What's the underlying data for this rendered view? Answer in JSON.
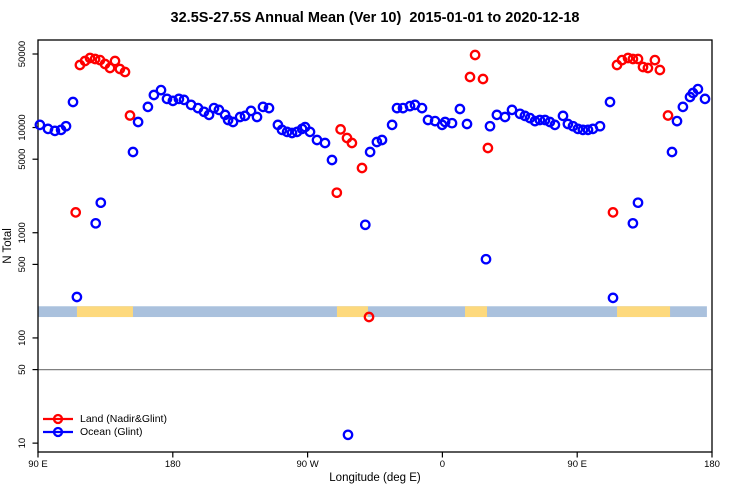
{
  "chart_data": {
    "type": "scatter",
    "title": "32.5S-27.5S Annual Mean (Ver 10)  2015-01-01 to 2020-12-18",
    "xlabel": "Longitude (deg E)",
    "ylabel": "N Total",
    "x_axis": {
      "note": "degrees eastward from left edge; left edge = 90E, wraps past 360",
      "range_deg": [
        0,
        450
      ],
      "ticks_deg": [
        0,
        90,
        180,
        270,
        360,
        450
      ],
      "tick_labels": [
        "90 E",
        "180",
        "90 W",
        "0",
        "90 E",
        "180"
      ]
    },
    "y_axis": {
      "scale": "log10",
      "ticks": [
        50000,
        10000,
        5000,
        1000,
        500,
        100,
        50,
        10
      ],
      "tick_labels": [
        "50000",
        "10000",
        "5000",
        "1000",
        "500",
        "100",
        "50",
        "10"
      ],
      "range": [
        8.2,
        68000
      ]
    },
    "reference_line": {
      "value": 50,
      "color": "#808080"
    },
    "land_ocean_band": {
      "y_top_value": 200,
      "y_bottom_value": 158,
      "ocean_color": "#aac1dd",
      "land_color": "#fdd97d",
      "ocean_extent_deg": [
        0,
        446.6
      ],
      "land_segments_deg": [
        [
          26.0,
          63.4
        ],
        [
          199.6,
          220.3
        ],
        [
          285.1,
          299.8
        ],
        [
          386.6,
          422.0
        ]
      ]
    },
    "series": [
      {
        "name": "Land (Nadir&Glint)",
        "color": "#ff0000",
        "points": [
          [
            25.2,
            1560
          ],
          [
            28.0,
            39300
          ],
          [
            31.4,
            42900
          ],
          [
            34.7,
            45800
          ],
          [
            38.1,
            44800
          ],
          [
            41.4,
            43800
          ],
          [
            44.7,
            40200
          ],
          [
            48.1,
            36800
          ],
          [
            51.4,
            42900
          ],
          [
            54.7,
            36000
          ],
          [
            58.1,
            33700
          ],
          [
            61.4,
            13000
          ],
          [
            199.5,
            2400
          ],
          [
            202.0,
            9600
          ],
          [
            206.3,
            7960
          ],
          [
            209.6,
            7130
          ],
          [
            216.3,
            4120
          ],
          [
            221.0,
            158
          ],
          [
            288.4,
            30200
          ],
          [
            291.8,
            48900
          ],
          [
            297.1,
            28900
          ],
          [
            300.4,
            6390
          ],
          [
            383.9,
            1560
          ],
          [
            386.6,
            39300
          ],
          [
            389.9,
            43800
          ],
          [
            393.9,
            45800
          ],
          [
            397.2,
            44800
          ],
          [
            400.6,
            44800
          ],
          [
            403.9,
            37600
          ],
          [
            407.2,
            36800
          ],
          [
            411.9,
            43800
          ],
          [
            415.2,
            35200
          ],
          [
            420.6,
            13000
          ]
        ]
      },
      {
        "name": "Ocean (Glint)",
        "color": "#0000ff",
        "points": [
          [
            1.3,
            10600
          ],
          [
            6.7,
            9700
          ],
          [
            11.3,
            9300
          ],
          [
            15.4,
            9500
          ],
          [
            18.7,
            10300
          ],
          [
            23.4,
            17500
          ],
          [
            26.0,
            245
          ],
          [
            38.5,
            1230
          ],
          [
            41.9,
            1930
          ],
          [
            63.4,
            5860
          ],
          [
            66.8,
            11300
          ],
          [
            73.4,
            15700
          ],
          [
            77.4,
            20400
          ],
          [
            82.1,
            22700
          ],
          [
            86.1,
            18700
          ],
          [
            90.1,
            17900
          ],
          [
            94.1,
            18700
          ],
          [
            97.5,
            18300
          ],
          [
            102.2,
            16400
          ],
          [
            106.8,
            15300
          ],
          [
            110.8,
            14100
          ],
          [
            114.2,
            13200
          ],
          [
            117.5,
            15300
          ],
          [
            120.8,
            14700
          ],
          [
            124.9,
            13200
          ],
          [
            126.9,
            11800
          ],
          [
            130.2,
            11300
          ],
          [
            134.9,
            12600
          ],
          [
            138.2,
            12900
          ],
          [
            142.2,
            14400
          ],
          [
            146.2,
            12600
          ],
          [
            150.2,
            15700
          ],
          [
            154.2,
            15300
          ],
          [
            160.2,
            10600
          ],
          [
            162.9,
            9500
          ],
          [
            166.3,
            9080
          ],
          [
            169.6,
            8880
          ],
          [
            172.9,
            9080
          ],
          [
            176.3,
            9700
          ],
          [
            178.3,
            10100
          ],
          [
            181.6,
            9080
          ],
          [
            186.3,
            7620
          ],
          [
            191.6,
            7130
          ],
          [
            196.3,
            4910
          ],
          [
            207.0,
            12
          ],
          [
            218.5,
            1190
          ],
          [
            221.7,
            5860
          ],
          [
            226.3,
            7290
          ],
          [
            229.7,
            7620
          ],
          [
            236.4,
            10600
          ],
          [
            239.7,
            15300
          ],
          [
            243.7,
            15300
          ],
          [
            248.4,
            16000
          ],
          [
            251.7,
            16400
          ],
          [
            256.4,
            15300
          ],
          [
            260.4,
            11800
          ],
          [
            265.1,
            11500
          ],
          [
            269.8,
            10600
          ],
          [
            271.8,
            11300
          ],
          [
            276.4,
            11000
          ],
          [
            281.7,
            15000
          ],
          [
            286.4,
            10800
          ],
          [
            299.1,
            560
          ],
          [
            301.8,
            10300
          ],
          [
            306.4,
            13200
          ],
          [
            311.8,
            12600
          ],
          [
            316.5,
            14700
          ],
          [
            321.8,
            13500
          ],
          [
            325.1,
            12900
          ],
          [
            328.5,
            12300
          ],
          [
            331.8,
            11500
          ],
          [
            335.1,
            11800
          ],
          [
            338.5,
            11800
          ],
          [
            341.8,
            11300
          ],
          [
            345.1,
            10600
          ],
          [
            350.5,
            12900
          ],
          [
            353.8,
            10800
          ],
          [
            357.2,
            10300
          ],
          [
            360.5,
            9700
          ],
          [
            363.8,
            9500
          ],
          [
            367.2,
            9500
          ],
          [
            370.5,
            9700
          ],
          [
            375.2,
            10300
          ],
          [
            381.9,
            17500
          ],
          [
            383.9,
            240
          ],
          [
            397.2,
            1230
          ],
          [
            400.6,
            1930
          ],
          [
            423.3,
            5860
          ],
          [
            426.6,
            11500
          ],
          [
            430.6,
            15700
          ],
          [
            435.3,
            19500
          ],
          [
            437.3,
            21300
          ],
          [
            440.6,
            23200
          ],
          [
            445.3,
            18700
          ]
        ]
      }
    ],
    "legend": {
      "position": "bottom-left",
      "entries": [
        "Land (Nadir&Glint)",
        "Ocean (Glint)"
      ]
    }
  }
}
